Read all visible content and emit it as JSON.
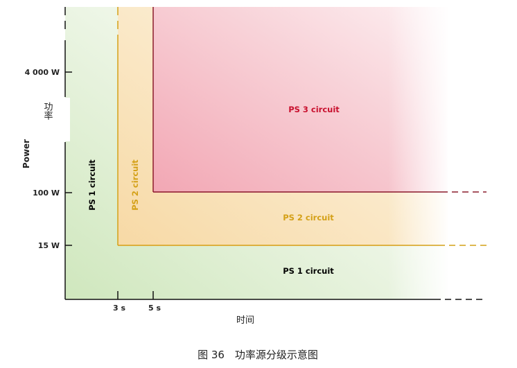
{
  "diagram": {
    "y_axis": {
      "label_en": "Power",
      "label_cn": "功率",
      "ticks": [
        "4 000 W",
        "100 W",
        "15 W"
      ]
    },
    "x_axis": {
      "label_cn": "时间",
      "ticks": [
        "3 s",
        "5 s"
      ]
    },
    "regions": [
      {
        "id": "ps1",
        "label": "PS 1 circuit",
        "vertical_label": "PS 1 circuit",
        "color": "#000000",
        "fill": "#d3eac2"
      },
      {
        "id": "ps2",
        "label": "PS 2 circuit",
        "vertical_label": "PS 2 circuit",
        "color": "#d4a017",
        "fill": "#f6d9a4"
      },
      {
        "id": "ps3",
        "label": "PS 3 circuit",
        "color": "#c8102e",
        "fill": "#f2a9b6"
      }
    ],
    "caption": "图 36　功率源分级示意图"
  }
}
